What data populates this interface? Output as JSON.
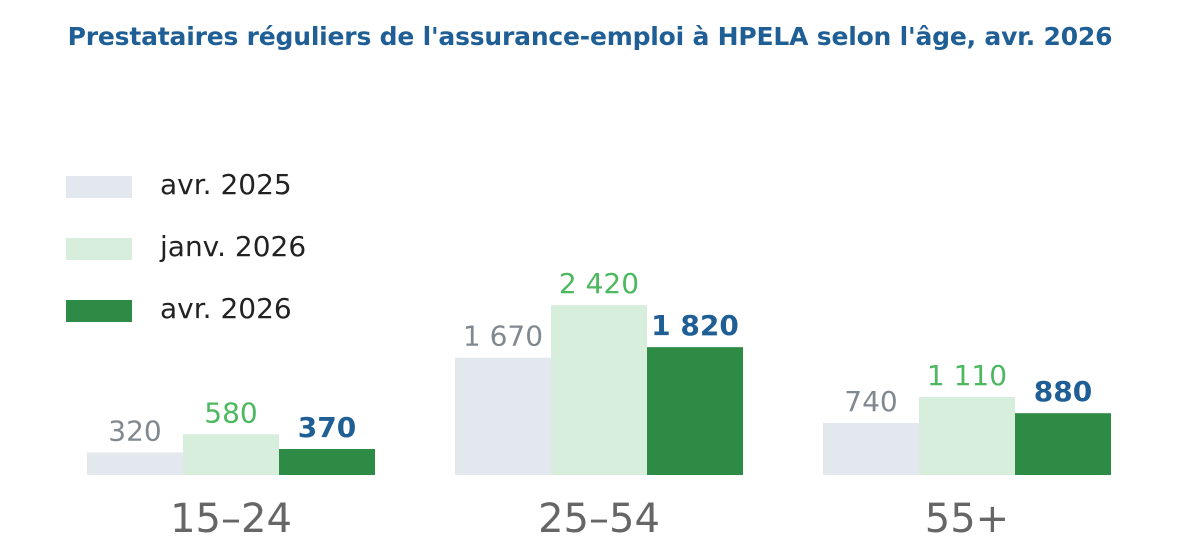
{
  "chart_data": {
    "type": "bar",
    "title": "Prestataires réguliers de l'assurance-emploi à HPELA selon l'âge, avr. 2026",
    "categories": [
      "15–24",
      "25–54",
      "55+"
    ],
    "series": [
      {
        "name": "avr. 2025",
        "values": [
          320,
          1670,
          740
        ],
        "labels": [
          "320",
          "1 670",
          "740"
        ],
        "color": "#e3e8ef",
        "label_color": "#808890",
        "label_bold": false
      },
      {
        "name": "janv. 2026",
        "values": [
          580,
          2420,
          1110
        ],
        "labels": [
          "580",
          "2 420",
          "1 110"
        ],
        "color": "#d8eedd",
        "label_color": "#4cb85f",
        "label_bold": false
      },
      {
        "name": "avr. 2026",
        "values": [
          370,
          1820,
          880
        ],
        "labels": [
          "370",
          "1 820",
          "880"
        ],
        "color": "#2e8b45",
        "label_color": "#1f5f95",
        "label_bold": true
      }
    ],
    "ylim": [
      0,
      2420
    ],
    "legend_position": "top-left",
    "grid": false
  }
}
